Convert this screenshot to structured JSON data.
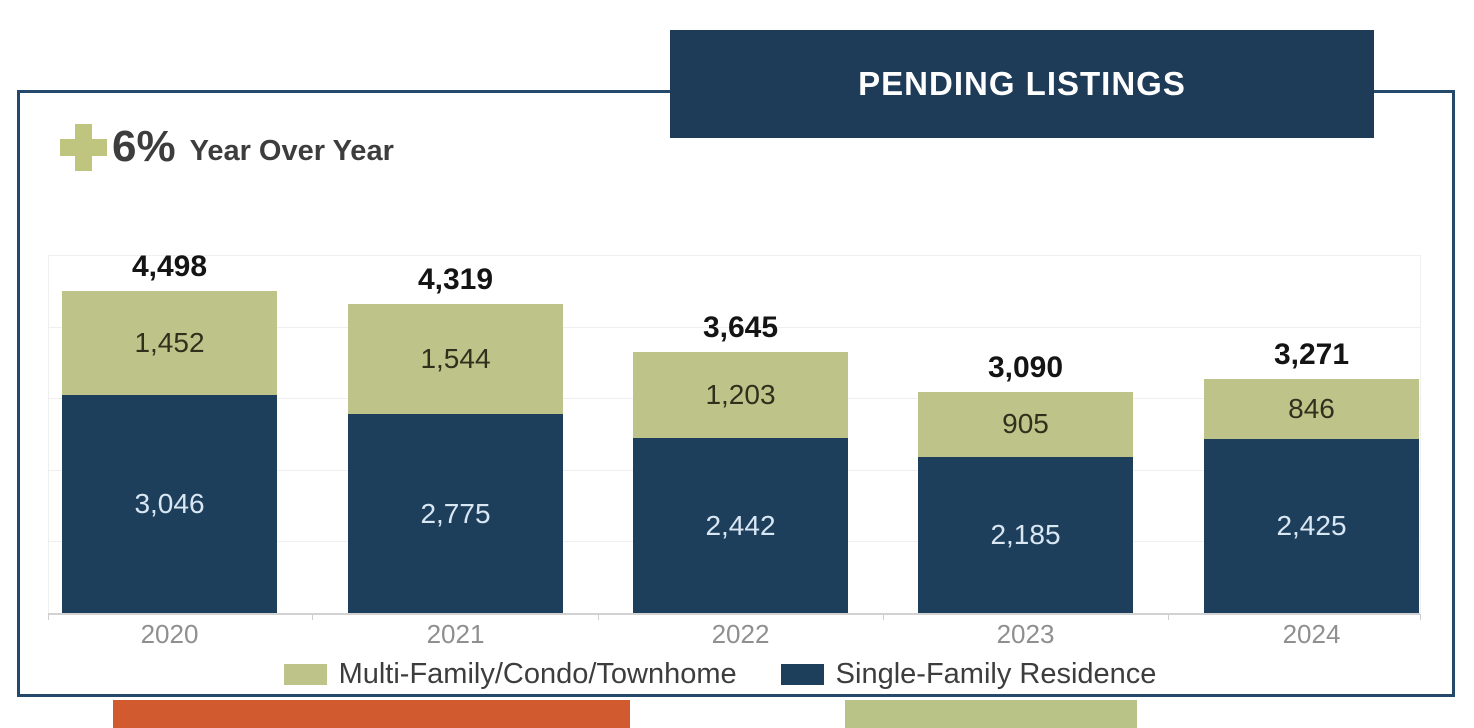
{
  "banner": {
    "label": "PENDING LISTINGS",
    "bg_color": "#1e3c58",
    "text_color": "#ffffff"
  },
  "yoy": {
    "value": "6%",
    "label": "Year Over Year",
    "plus_color": "#bfc57f",
    "text_color": "#3d3d3d"
  },
  "chart_data": {
    "type": "bar",
    "stacked": true,
    "title": "PENDING LISTINGS",
    "categories": [
      "2020",
      "2021",
      "2022",
      "2023",
      "2024"
    ],
    "series": [
      {
        "name": "Single-Family Residence",
        "color": "#1e3f5c",
        "label_color": "#d9e7f3",
        "values": [
          3046,
          2775,
          2442,
          2185,
          2425
        ],
        "value_labels": [
          "3,046",
          "2,775",
          "2,442",
          "2,185",
          "2,425"
        ]
      },
      {
        "name": "Multi-Family/Condo/Townhome",
        "color": "#bec489",
        "label_color": "#30301d",
        "values": [
          1452,
          1544,
          1203,
          905,
          846
        ],
        "value_labels": [
          "1,452",
          "1,544",
          "1,203",
          "905",
          "846"
        ]
      }
    ],
    "totals": [
      4498,
      4319,
      3645,
      3090,
      3271
    ],
    "total_labels": [
      "4,498",
      "4,319",
      "3,645",
      "3,090",
      "3,271"
    ],
    "ylim": [
      0,
      5000
    ],
    "gridline_interval": 1000,
    "grid": true,
    "y_axis_labels_visible": false,
    "legend_position": "bottom",
    "legend": [
      {
        "label": "Multi-Family/Condo/Townhome",
        "color": "#bec489"
      },
      {
        "label": "Single-Family Residence",
        "color": "#1e3f5c"
      }
    ]
  },
  "footer_shapes": {
    "left_bar_color": "#d15b2e",
    "right_bar_color": "#b9c287"
  }
}
